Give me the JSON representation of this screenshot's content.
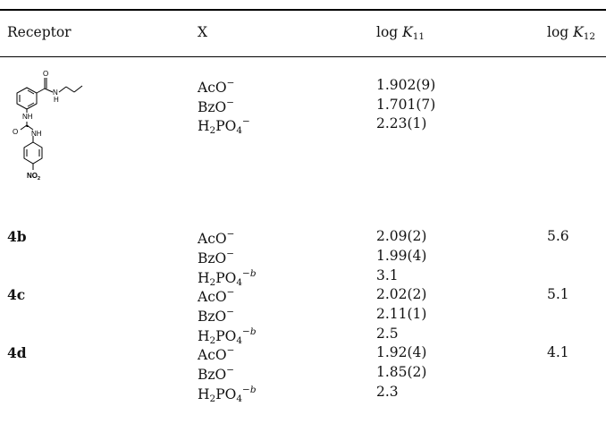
{
  "table": {
    "headers": {
      "receptor": "Receptor",
      "x": "X",
      "logk11_prefix": "log ",
      "logk11_var": "K",
      "logk11_sub": "11",
      "logk12_prefix": "log ",
      "logk12_var": "K",
      "logk12_sub": "12"
    },
    "structure_labels": {
      "o_top": "O",
      "nh_amide_n": "N",
      "nh_amide_h": "H",
      "nh_upper": "NH",
      "o_urea": "O",
      "nh_lower": "NH",
      "nitro": "NO",
      "nitro_sub": "2"
    },
    "anions": {
      "aco": "AcO",
      "bzo": "BzO",
      "h2po4_h": "H",
      "h2po4_sub2": "2",
      "h2po4_po": "PO",
      "h2po4_sub4": "4",
      "minus": "−",
      "minus_b": "−b"
    },
    "rows": {
      "r4a": {
        "k11": [
          "1.902(9)",
          "1.701(7)",
          "2.23(1)"
        ]
      },
      "r4b": {
        "label": "4b",
        "k11": [
          "2.09(2)",
          "1.99(4)",
          "3.1"
        ],
        "k12": "5.6"
      },
      "r4c": {
        "label": "4c",
        "k11": [
          "2.02(2)",
          "2.11(1)",
          "2.5"
        ],
        "k12": "5.1"
      },
      "r4d": {
        "label": "4d",
        "k11": [
          "1.92(4)",
          "1.85(2)",
          "2.3"
        ],
        "k12": "4.1"
      }
    }
  }
}
